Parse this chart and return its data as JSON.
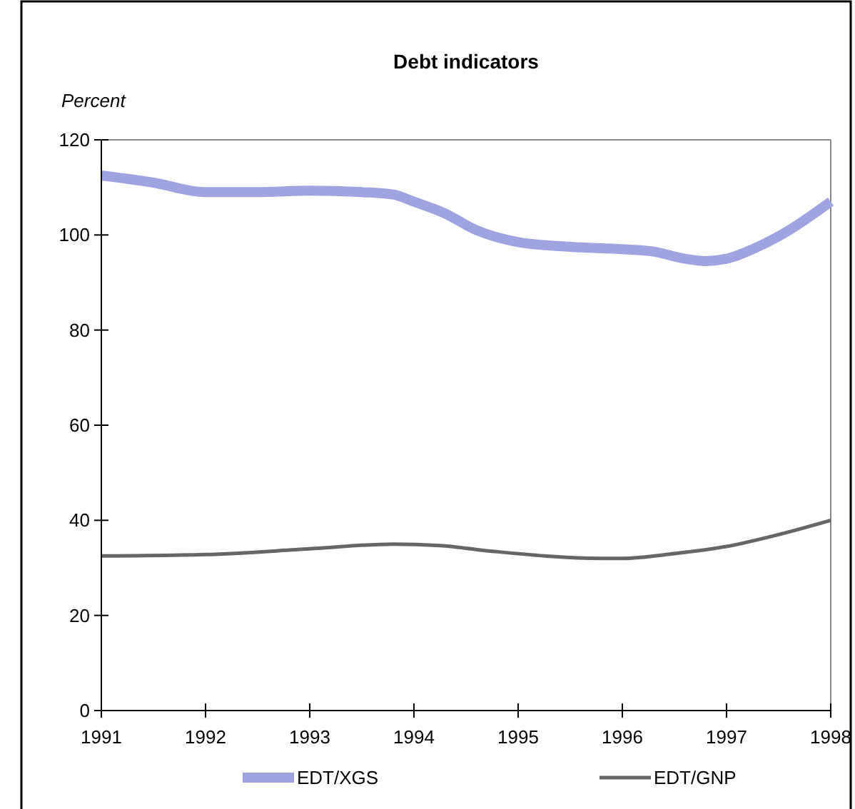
{
  "chart_data": {
    "type": "line",
    "title": "Debt indicators",
    "ylabel": "Percent",
    "xlim": [
      1991,
      1998
    ],
    "xticks": [
      1991,
      1992,
      1993,
      1994,
      1995,
      1996,
      1997,
      1998
    ],
    "ylim": [
      0,
      120
    ],
    "yticks": [
      0,
      20,
      40,
      60,
      80,
      100,
      120
    ],
    "grid": false,
    "legend": "bottom",
    "series": [
      {
        "name": "EDT/XGS",
        "color": "#9fa3e0",
        "x": [
          1991,
          1991.5,
          1992,
          1992.5,
          1993,
          1993.5,
          1993.8,
          1994,
          1994.3,
          1994.6,
          1995,
          1995.5,
          1996,
          1996.3,
          1996.6,
          1996.8,
          1997,
          1997.3,
          1997.6,
          1998
        ],
        "values": [
          112.5,
          111,
          109,
          109,
          109.3,
          109,
          108.5,
          107,
          104.5,
          101,
          98.5,
          97.5,
          97,
          96.5,
          95,
          94.5,
          95,
          97.5,
          101,
          107
        ]
      },
      {
        "name": "EDT/GNP",
        "color": "#666666",
        "x": [
          1991,
          1992,
          1993,
          1993.8,
          1994.25,
          1994.75,
          1995.8,
          1996,
          1996.5,
          1997,
          1997.5,
          1998
        ],
        "values": [
          32.5,
          32.8,
          34,
          35,
          34.7,
          33.5,
          32,
          32,
          33,
          34.5,
          37,
          40
        ]
      }
    ]
  }
}
